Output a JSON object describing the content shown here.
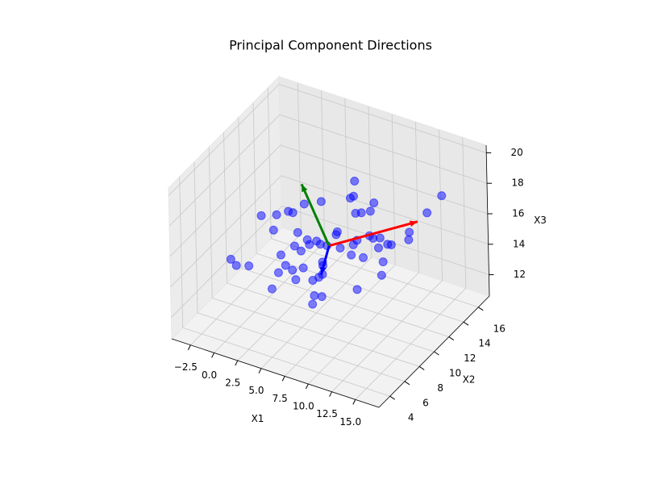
{
  "chart_data": {
    "type": "scatter3d",
    "title": "Principal Component Directions",
    "xlabel": "X1",
    "ylabel": "X2",
    "zlabel": "X3",
    "color": "blue",
    "x": [
      6.2,
      3.1,
      9.8,
      5.5,
      -1.2,
      7.4,
      11.6,
      4.3,
      8.9,
      2.0,
      6.8,
      13.5,
      0.7,
      5.1,
      10.2,
      7.9,
      3.6,
      -2.5,
      9.1,
      6.0,
      12.3,
      4.8,
      1.5,
      8.3,
      5.7,
      14.8,
      2.9,
      7.1,
      10.9,
      -0.4,
      6.5,
      3.9,
      9.5,
      5.2,
      11.1,
      1.1,
      8.0,
      4.1,
      13.0,
      6.9,
      0.2,
      7.7,
      2.4,
      10.5,
      5.9,
      8.6,
      3.3,
      12.7,
      6.3,
      -1.8,
      9.3,
      4.6,
      7.3,
      1.9,
      11.8,
      5.4,
      8.2,
      15.6,
      2.7,
      6.6
    ],
    "y": [
      10.1,
      8.4,
      11.3,
      9.6,
      7.2,
      12.5,
      10.8,
      9.0,
      13.1,
      8.8,
      10.6,
      11.9,
      6.5,
      10.3,
      12.2,
      9.4,
      11.0,
      8.1,
      10.0,
      14.2,
      9.7,
      7.6,
      10.9,
      11.5,
      8.9,
      12.8,
      9.9,
      6.9,
      10.4,
      11.7,
      13.4,
      8.3,
      9.2,
      10.7,
      7.9,
      12.0,
      11.1,
      9.5,
      10.2,
      8.6,
      10.5,
      12.9,
      7.4,
      11.6,
      9.8,
      6.3,
      10.8,
      13.0,
      9.1,
      11.4,
      8.0,
      10.1,
      14.6,
      9.3,
      11.2,
      8.5,
      12.4,
      13.8,
      10.6,
      9.0
    ],
    "z": [
      15.2,
      14.1,
      16.0,
      15.6,
      13.8,
      16.4,
      14.9,
      15.0,
      17.1,
      13.2,
      15.8,
      16.2,
      14.5,
      12.8,
      15.5,
      16.8,
      14.3,
      13.5,
      15.9,
      17.4,
      14.7,
      13.9,
      16.1,
      15.3,
      12.4,
      17.8,
      14.6,
      13.1,
      16.5,
      15.1,
      16.9,
      14.0,
      15.7,
      17.6,
      14.4,
      15.4,
      18.2,
      13.6,
      16.6,
      15.0,
      14.8,
      16.3,
      12.9,
      15.2,
      13.4,
      14.2,
      17.0,
      16.0,
      15.8,
      14.9,
      16.7,
      12.6,
      15.5,
      14.1,
      15.9,
      16.2,
      13.7,
      18.6,
      15.1,
      14.5
    ],
    "vectors": [
      {
        "color": "red",
        "start": [
          6.5,
          10.0,
          15.3
        ],
        "end": [
          14.0,
          12.5,
          17.2
        ]
      },
      {
        "color": "green",
        "start": [
          6.5,
          10.0,
          15.3
        ],
        "end": [
          2.5,
          11.5,
          17.8
        ]
      },
      {
        "color": "blue",
        "start": [
          6.5,
          10.0,
          15.3
        ],
        "end": [
          6.8,
          8.5,
          14.2
        ]
      }
    ],
    "xlim": [
      -4.5,
      17.5
    ],
    "ylim": [
      2.5,
      17.5
    ],
    "zlim": [
      10.6,
      20.5
    ],
    "xticks": [
      {
        "value": -2.5,
        "label": "−2.5"
      },
      {
        "value": 0,
        "label": "0.0"
      },
      2.5,
      {
        "value": 5,
        "label": "5.0"
      },
      7.5,
      {
        "value": 10,
        "label": "10.0"
      },
      12.5,
      {
        "value": 15,
        "label": "15.0"
      }
    ],
    "yticks": [
      4,
      6,
      8,
      10,
      12,
      14,
      16
    ],
    "zticks": [
      12,
      14,
      16,
      18,
      20
    ],
    "grid": true
  }
}
